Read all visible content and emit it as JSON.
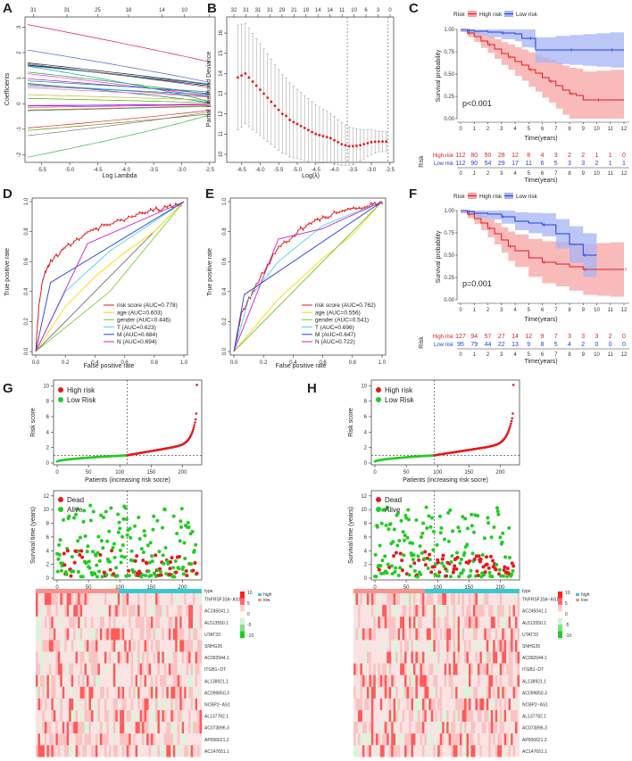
{
  "panels": {
    "A": {
      "label": "A",
      "top_ticks": [
        "31",
        "31",
        "25",
        "18",
        "14",
        "10",
        "2"
      ],
      "x_ticks": [
        "-5.5",
        "-5.0",
        "-4.5",
        "-4.0",
        "-3.5",
        "-3.0",
        "-2.5"
      ],
      "y_ticks": [
        "3",
        "2",
        "1",
        "0",
        "-1",
        "-2"
      ],
      "xlabel": "Log Lambda",
      "ylabel": "Coefficients"
    },
    "B": {
      "label": "B",
      "top_ticks": [
        "32",
        "31",
        "31",
        "31",
        "29",
        "21",
        "19",
        "14",
        "14",
        "11",
        "10",
        "6",
        "3",
        "0"
      ],
      "x_ticks": [
        "-6.5",
        "-6.0",
        "-5.5",
        "-5.0",
        "-4.5",
        "-4.0",
        "-3.5",
        "-3.0",
        "-2.5"
      ],
      "y_ticks": [
        "16",
        "15",
        "14",
        "13",
        "12",
        "11",
        "10"
      ],
      "xlabel": "Log(λ)",
      "ylabel": "Partial Likelihood Deviance"
    },
    "C": {
      "label": "C",
      "legend_title": "Risk",
      "legend_high": "High risk",
      "legend_low": "Low risk",
      "pvalue": "p<0.001",
      "ylabel": "Survival probability",
      "xlabel": "Time(years)",
      "y_ticks": [
        "1.00",
        "0.75",
        "0.50",
        "0.25",
        "0.00"
      ],
      "x_ticks": [
        "0",
        "1",
        "2",
        "3",
        "4",
        "5",
        "6",
        "7",
        "8",
        "9",
        "10",
        "11",
        "12"
      ],
      "risk_axis": "Risk",
      "risk_row_high": "High risk",
      "risk_row_low": "Low risk",
      "risk_high": [
        "112",
        "80",
        "50",
        "28",
        "12",
        "8",
        "4",
        "3",
        "2",
        "2",
        "1",
        "1",
        "0"
      ],
      "risk_low": [
        "112",
        "90",
        "54",
        "29",
        "17",
        "11",
        "6",
        "5",
        "3",
        "3",
        "2",
        "1",
        "1"
      ]
    },
    "D": {
      "label": "D",
      "xlabel": "False positive rate",
      "ylabel": "True positive rate",
      "ticks": [
        "0.0",
        "0.2",
        "0.4",
        "0.6",
        "0.8",
        "1.0"
      ],
      "legend": [
        "risk score (AUC=0.778)",
        "age (AUC=0.603)",
        "gender (AUC=0.446)",
        "T (AUC=0.623)",
        "M (AUC=0.684)",
        "N (AUC=0.694)"
      ]
    },
    "E": {
      "label": "E",
      "xlabel": "False positive rate",
      "ylabel": "True positive rate",
      "ticks": [
        "0.0",
        "0.2",
        "0.4",
        "0.6",
        "0.8",
        "1.0"
      ],
      "legend": [
        "risk score (AUC=0.762)",
        "age (AUC=0.556)",
        "gender (AUC=0.541)",
        "T (AUC=0.696)",
        "M (AUC=0.647)",
        "N (AUC=0.722)"
      ]
    },
    "F": {
      "label": "F",
      "legend_title": "Risk",
      "legend_high": "High risk",
      "legend_low": "Low risk",
      "pvalue": "p=0.001",
      "ylabel": "Survival probability",
      "xlabel": "Time(years)",
      "y_ticks": [
        "1.00",
        "0.75",
        "0.50",
        "0.25",
        "0.00"
      ],
      "x_ticks": [
        "0",
        "1",
        "2",
        "3",
        "4",
        "5",
        "6",
        "7",
        "8",
        "9",
        "10",
        "11",
        "12"
      ],
      "risk_axis": "Risk",
      "risk_row_high": "High risk",
      "risk_row_low": "Low risk",
      "risk_high": [
        "127",
        "94",
        "57",
        "27",
        "14",
        "12",
        "9",
        "7",
        "3",
        "3",
        "3",
        "2",
        "0"
      ],
      "risk_low": [
        "95",
        "79",
        "44",
        "22",
        "13",
        "9",
        "8",
        "5",
        "4",
        "2",
        "0",
        "0",
        "0"
      ]
    },
    "G": {
      "label": "G",
      "score_legend": [
        "High risk",
        "Low Risk"
      ],
      "score_ylabel": "Risk score",
      "score_yticks": [
        "10",
        "8",
        "6",
        "4",
        "2",
        "0"
      ],
      "score_xticks": [
        "0",
        "50",
        "100",
        "150",
        "200"
      ],
      "score_xlabel": "Patients (increasing risk socre)",
      "surv_legend": [
        "Dead",
        "Alive"
      ],
      "surv_ylabel": "Survival time (years)",
      "surv_yticks": [
        "12",
        "10",
        "8",
        "6",
        "4",
        "2",
        "0"
      ],
      "surv_xticks": [
        "0",
        "50",
        "100",
        "150",
        "200"
      ],
      "surv_xlabel": "Patients (increasing risk socre)",
      "heat_type_title": "type",
      "heat_type_high": "high",
      "heat_type_low": "low",
      "heat_scale": [
        "10",
        "5",
        "0",
        "-5",
        "-10"
      ],
      "genes": [
        "TNFRSF10A−AS1",
        "AC245041.1",
        "AL513550.1",
        "UTAT33",
        "SNHG26",
        "AC092944.1",
        "ITGB1−DT",
        "AL138921.1",
        "AC099850.3",
        "NCBP2−AS1",
        "AL137782.1",
        "AC073896.3",
        "AP006621.2",
        "AC147651.1"
      ]
    },
    "H": {
      "label": "H",
      "score_legend": [
        "High risk",
        "Low Risk"
      ],
      "score_ylabel": "Risk score",
      "score_yticks": [
        "10",
        "8",
        "6",
        "4",
        "2",
        "0"
      ],
      "score_xticks": [
        "0",
        "50",
        "100",
        "150",
        "200"
      ],
      "score_xlabel": "Patients (increasing risk socre)",
      "surv_legend": [
        "Dead",
        "Alive"
      ],
      "surv_ylabel": "Survival time (years)",
      "surv_yticks": [
        "12",
        "10",
        "8",
        "6",
        "4",
        "2",
        "0"
      ],
      "surv_xticks": [
        "0",
        "50",
        "100",
        "150",
        "200"
      ],
      "surv_xlabel": "Patients (increasing risk socre)",
      "heat_type_title": "type",
      "heat_type_high": "high",
      "heat_type_low": "low",
      "heat_scale": [
        "10",
        "5",
        "0",
        "-5",
        "-10"
      ],
      "genes": [
        "TNFRSF10A−AS1",
        "AC245041.1",
        "AL513550.1",
        "UTAT33",
        "SNHG26",
        "AC092944.1",
        "ITGB1−DT",
        "AL138921.1",
        "AC099850.3",
        "NCBP2−AS1",
        "AL137782.1",
        "AC073896.3",
        "AP006621.2",
        "AC147651.1"
      ]
    }
  },
  "colors": {
    "high": "#e41a1c",
    "low": "#1f3fe0",
    "alive": "#22cc22",
    "heat_high": "#ff2a2a",
    "heat_low": "#2ecc40"
  },
  "chart_data": [
    {
      "type": "line",
      "title": "A",
      "description": "LASSO coefficient profiles",
      "xlabel": "Log Lambda",
      "ylabel": "Coefficients",
      "xlim": [
        -5.8,
        -2.4
      ],
      "ylim": [
        -2.3,
        3.4
      ]
    },
    {
      "type": "scatter",
      "title": "B",
      "xlabel": "Log(λ)",
      "ylabel": "Partial Likelihood Deviance",
      "xlim": [
        -6.9,
        -2.4
      ],
      "ylim": [
        9.6,
        16.8
      ],
      "lambda_min": -3.65,
      "lambda_1se": -2.55,
      "x": [
        -6.6,
        -6.5,
        -6.4,
        -6.3,
        -6.2,
        -6.1,
        -6.0,
        -5.9,
        -5.8,
        -5.7,
        -5.6,
        -5.5,
        -5.4,
        -5.3,
        -5.2,
        -5.1,
        -5.0,
        -4.9,
        -4.8,
        -4.7,
        -4.6,
        -4.5,
        -4.4,
        -4.3,
        -4.2,
        -4.1,
        -4.0,
        -3.9,
        -3.8,
        -3.7,
        -3.6,
        -3.5,
        -3.4,
        -3.3,
        -3.2,
        -3.1,
        -3.0,
        -2.9,
        -2.8,
        -2.7,
        -2.6
      ],
      "y": [
        13.8,
        13.9,
        14.0,
        13.8,
        13.6,
        13.4,
        13.2,
        13.0,
        12.8,
        12.6,
        12.4,
        12.2,
        12.0,
        11.9,
        11.7,
        11.6,
        11.5,
        11.4,
        11.3,
        11.2,
        11.1,
        11.0,
        10.95,
        10.9,
        10.85,
        10.8,
        10.7,
        10.6,
        10.5,
        10.45,
        10.4,
        10.4,
        10.42,
        10.45,
        10.5,
        10.55,
        10.6,
        10.62,
        10.63,
        10.63,
        10.63
      ]
    },
    {
      "type": "line",
      "title": "C",
      "xlabel": "Time(years)",
      "ylabel": "Survival probability",
      "xlim": [
        0,
        12.5
      ],
      "ylim": [
        0,
        1
      ],
      "series": [
        {
          "name": "High risk",
          "x": [
            0,
            0.5,
            1,
            1.5,
            2,
            2.5,
            3,
            3.5,
            4,
            4.5,
            5,
            5.5,
            6,
            6.5,
            7,
            7.5,
            8,
            8.5,
            9,
            10,
            11,
            12
          ],
          "y": [
            1,
            0.96,
            0.92,
            0.87,
            0.83,
            0.78,
            0.73,
            0.69,
            0.64,
            0.6,
            0.55,
            0.51,
            0.46,
            0.42,
            0.37,
            0.32,
            0.28,
            0.26,
            0.21,
            0.21,
            0.21,
            0.21
          ]
        },
        {
          "name": "Low risk",
          "x": [
            0,
            0.5,
            1,
            2,
            3,
            4,
            4.5,
            5,
            5.5,
            7,
            8,
            9,
            10,
            11,
            12
          ],
          "y": [
            1,
            0.99,
            0.98,
            0.97,
            0.96,
            0.95,
            0.9,
            0.9,
            0.77,
            0.77,
            0.77,
            0.77,
            0.77,
            0.77,
            0.77
          ]
        }
      ]
    },
    {
      "type": "line",
      "title": "D",
      "xlabel": "False positive rate",
      "ylabel": "True positive rate",
      "xlim": [
        0,
        1
      ],
      "ylim": [
        0,
        1
      ],
      "series": [
        {
          "name": "risk score (AUC=0.778)",
          "x": [
            0,
            0.02,
            0.05,
            0.1,
            0.2,
            0.35,
            0.5,
            0.7,
            0.85,
            1
          ],
          "y": [
            0,
            0.3,
            0.5,
            0.6,
            0.7,
            0.8,
            0.86,
            0.92,
            0.96,
            1
          ]
        },
        {
          "name": "age (AUC=0.603)",
          "x": [
            0,
            0.2,
            0.4,
            0.6,
            0.8,
            1
          ],
          "y": [
            0,
            0.3,
            0.5,
            0.66,
            0.8,
            1
          ]
        },
        {
          "name": "gender (AUC=0.446)",
          "x": [
            0,
            0.5,
            1
          ],
          "y": [
            0,
            0.4,
            1
          ]
        },
        {
          "name": "T (AUC=0.623)",
          "x": [
            0,
            0.2,
            0.5,
            1
          ],
          "y": [
            0,
            0.4,
            0.67,
            1
          ]
        },
        {
          "name": "M (AUC=0.684)",
          "x": [
            0,
            0.1,
            1
          ],
          "y": [
            0,
            0.46,
            1
          ]
        },
        {
          "name": "N (AUC=0.694)",
          "x": [
            0,
            0.35,
            1
          ],
          "y": [
            0,
            0.72,
            1
          ]
        }
      ]
    },
    {
      "type": "line",
      "title": "E",
      "xlabel": "False positive rate",
      "ylabel": "True positive rate",
      "xlim": [
        0,
        1
      ],
      "ylim": [
        0,
        1
      ],
      "series": [
        {
          "name": "risk score (AUC=0.762)",
          "x": [
            0,
            0.05,
            0.15,
            0.3,
            0.45,
            0.6,
            0.75,
            0.9,
            1
          ],
          "y": [
            0,
            0.25,
            0.45,
            0.7,
            0.82,
            0.9,
            0.95,
            0.98,
            1
          ]
        },
        {
          "name": "age (AUC=0.556)",
          "x": [
            0,
            0.3,
            0.6,
            0.8,
            1
          ],
          "y": [
            0,
            0.35,
            0.62,
            0.78,
            1
          ]
        },
        {
          "name": "gender (AUC=0.541)",
          "x": [
            0,
            0.6,
            1
          ],
          "y": [
            0,
            0.6,
            1
          ]
        },
        {
          "name": "T (AUC=0.696)",
          "x": [
            0,
            0.1,
            0.3,
            0.6,
            1
          ],
          "y": [
            0,
            0.35,
            0.6,
            0.84,
            1
          ]
        },
        {
          "name": "M (AUC=0.647)",
          "x": [
            0,
            0.07,
            0.4,
            1
          ],
          "y": [
            0,
            0.38,
            0.6,
            1
          ]
        },
        {
          "name": "N (AUC=0.722)",
          "x": [
            0,
            0.3,
            0.6,
            1
          ],
          "y": [
            0,
            0.75,
            0.82,
            1
          ]
        }
      ]
    },
    {
      "type": "line",
      "title": "F",
      "xlabel": "Time(years)",
      "ylabel": "Survival probability",
      "xlim": [
        0,
        12.5
      ],
      "ylim": [
        0,
        1
      ],
      "series": [
        {
          "name": "High risk",
          "x": [
            0,
            0.5,
            1,
            1.5,
            2,
            2.5,
            3,
            3.5,
            4,
            5,
            6,
            7,
            8,
            9,
            10,
            11,
            12
          ],
          "y": [
            1,
            0.96,
            0.91,
            0.86,
            0.8,
            0.74,
            0.67,
            0.6,
            0.55,
            0.47,
            0.42,
            0.4,
            0.37,
            0.34,
            0.34,
            0.34,
            0.34
          ]
        },
        {
          "name": "Low risk",
          "x": [
            0,
            0.5,
            1,
            2,
            3,
            4,
            5,
            6,
            7,
            8,
            9,
            10
          ],
          "y": [
            1,
            0.99,
            0.97,
            0.96,
            0.93,
            0.88,
            0.86,
            0.84,
            0.74,
            0.62,
            0.5,
            0.5
          ]
        }
      ]
    },
    {
      "type": "scatter",
      "title": "G",
      "xlabel": "Patients (increasing risk socre)",
      "ylabel": "Risk score",
      "n_patients": 224,
      "cutoff_index": 112,
      "cutoff_score": 1.0,
      "ylim": [
        0,
        10.5
      ]
    },
    {
      "type": "scatter",
      "title": "H",
      "xlabel": "Patients (increasing risk socre)",
      "ylabel": "Risk score",
      "n_patients": 222,
      "cutoff_index": 95,
      "cutoff_score": 1.0,
      "ylim": [
        0,
        10.5
      ]
    }
  ]
}
